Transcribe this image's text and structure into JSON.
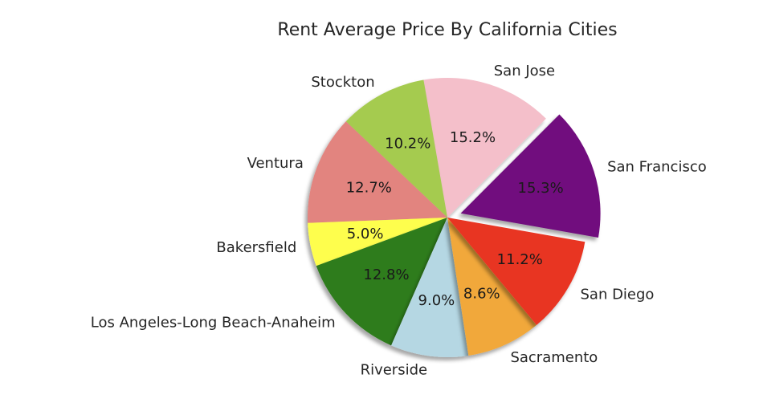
{
  "chart_data": {
    "type": "pie",
    "title": "Rent Average Price By California Cities",
    "slices": [
      {
        "label": "San Francisco",
        "percent": 15.3,
        "percent_label": "15.3%",
        "color": "#71107e",
        "exploded": true
      },
      {
        "label": "San Jose",
        "percent": 15.2,
        "percent_label": "15.2%",
        "color": "#f4bfca",
        "exploded": false
      },
      {
        "label": "Stockton",
        "percent": 10.2,
        "percent_label": "10.2%",
        "color": "#a5cb4f",
        "exploded": false
      },
      {
        "label": "Ventura",
        "percent": 12.7,
        "percent_label": "12.7%",
        "color": "#e2847f",
        "exploded": false
      },
      {
        "label": "Bakersfield",
        "percent": 5.0,
        "percent_label": "5.0%",
        "color": "#fefe4e",
        "exploded": false
      },
      {
        "label": "Los Angeles-Long Beach-Anaheim",
        "percent": 12.8,
        "percent_label": "12.8%",
        "color": "#2e7b1e",
        "exploded": false
      },
      {
        "label": "Riverside",
        "percent": 9.0,
        "percent_label": "9.0%",
        "color": "#b5d7e3",
        "exploded": false
      },
      {
        "label": "Sacramento",
        "percent": 8.6,
        "percent_label": "8.6%",
        "color": "#f1a83b",
        "exploded": false
      },
      {
        "label": "San Diego",
        "percent": 11.2,
        "percent_label": "11.2%",
        "color": "#e83424",
        "exploded": false
      }
    ],
    "shadow": true,
    "legend": "none"
  }
}
